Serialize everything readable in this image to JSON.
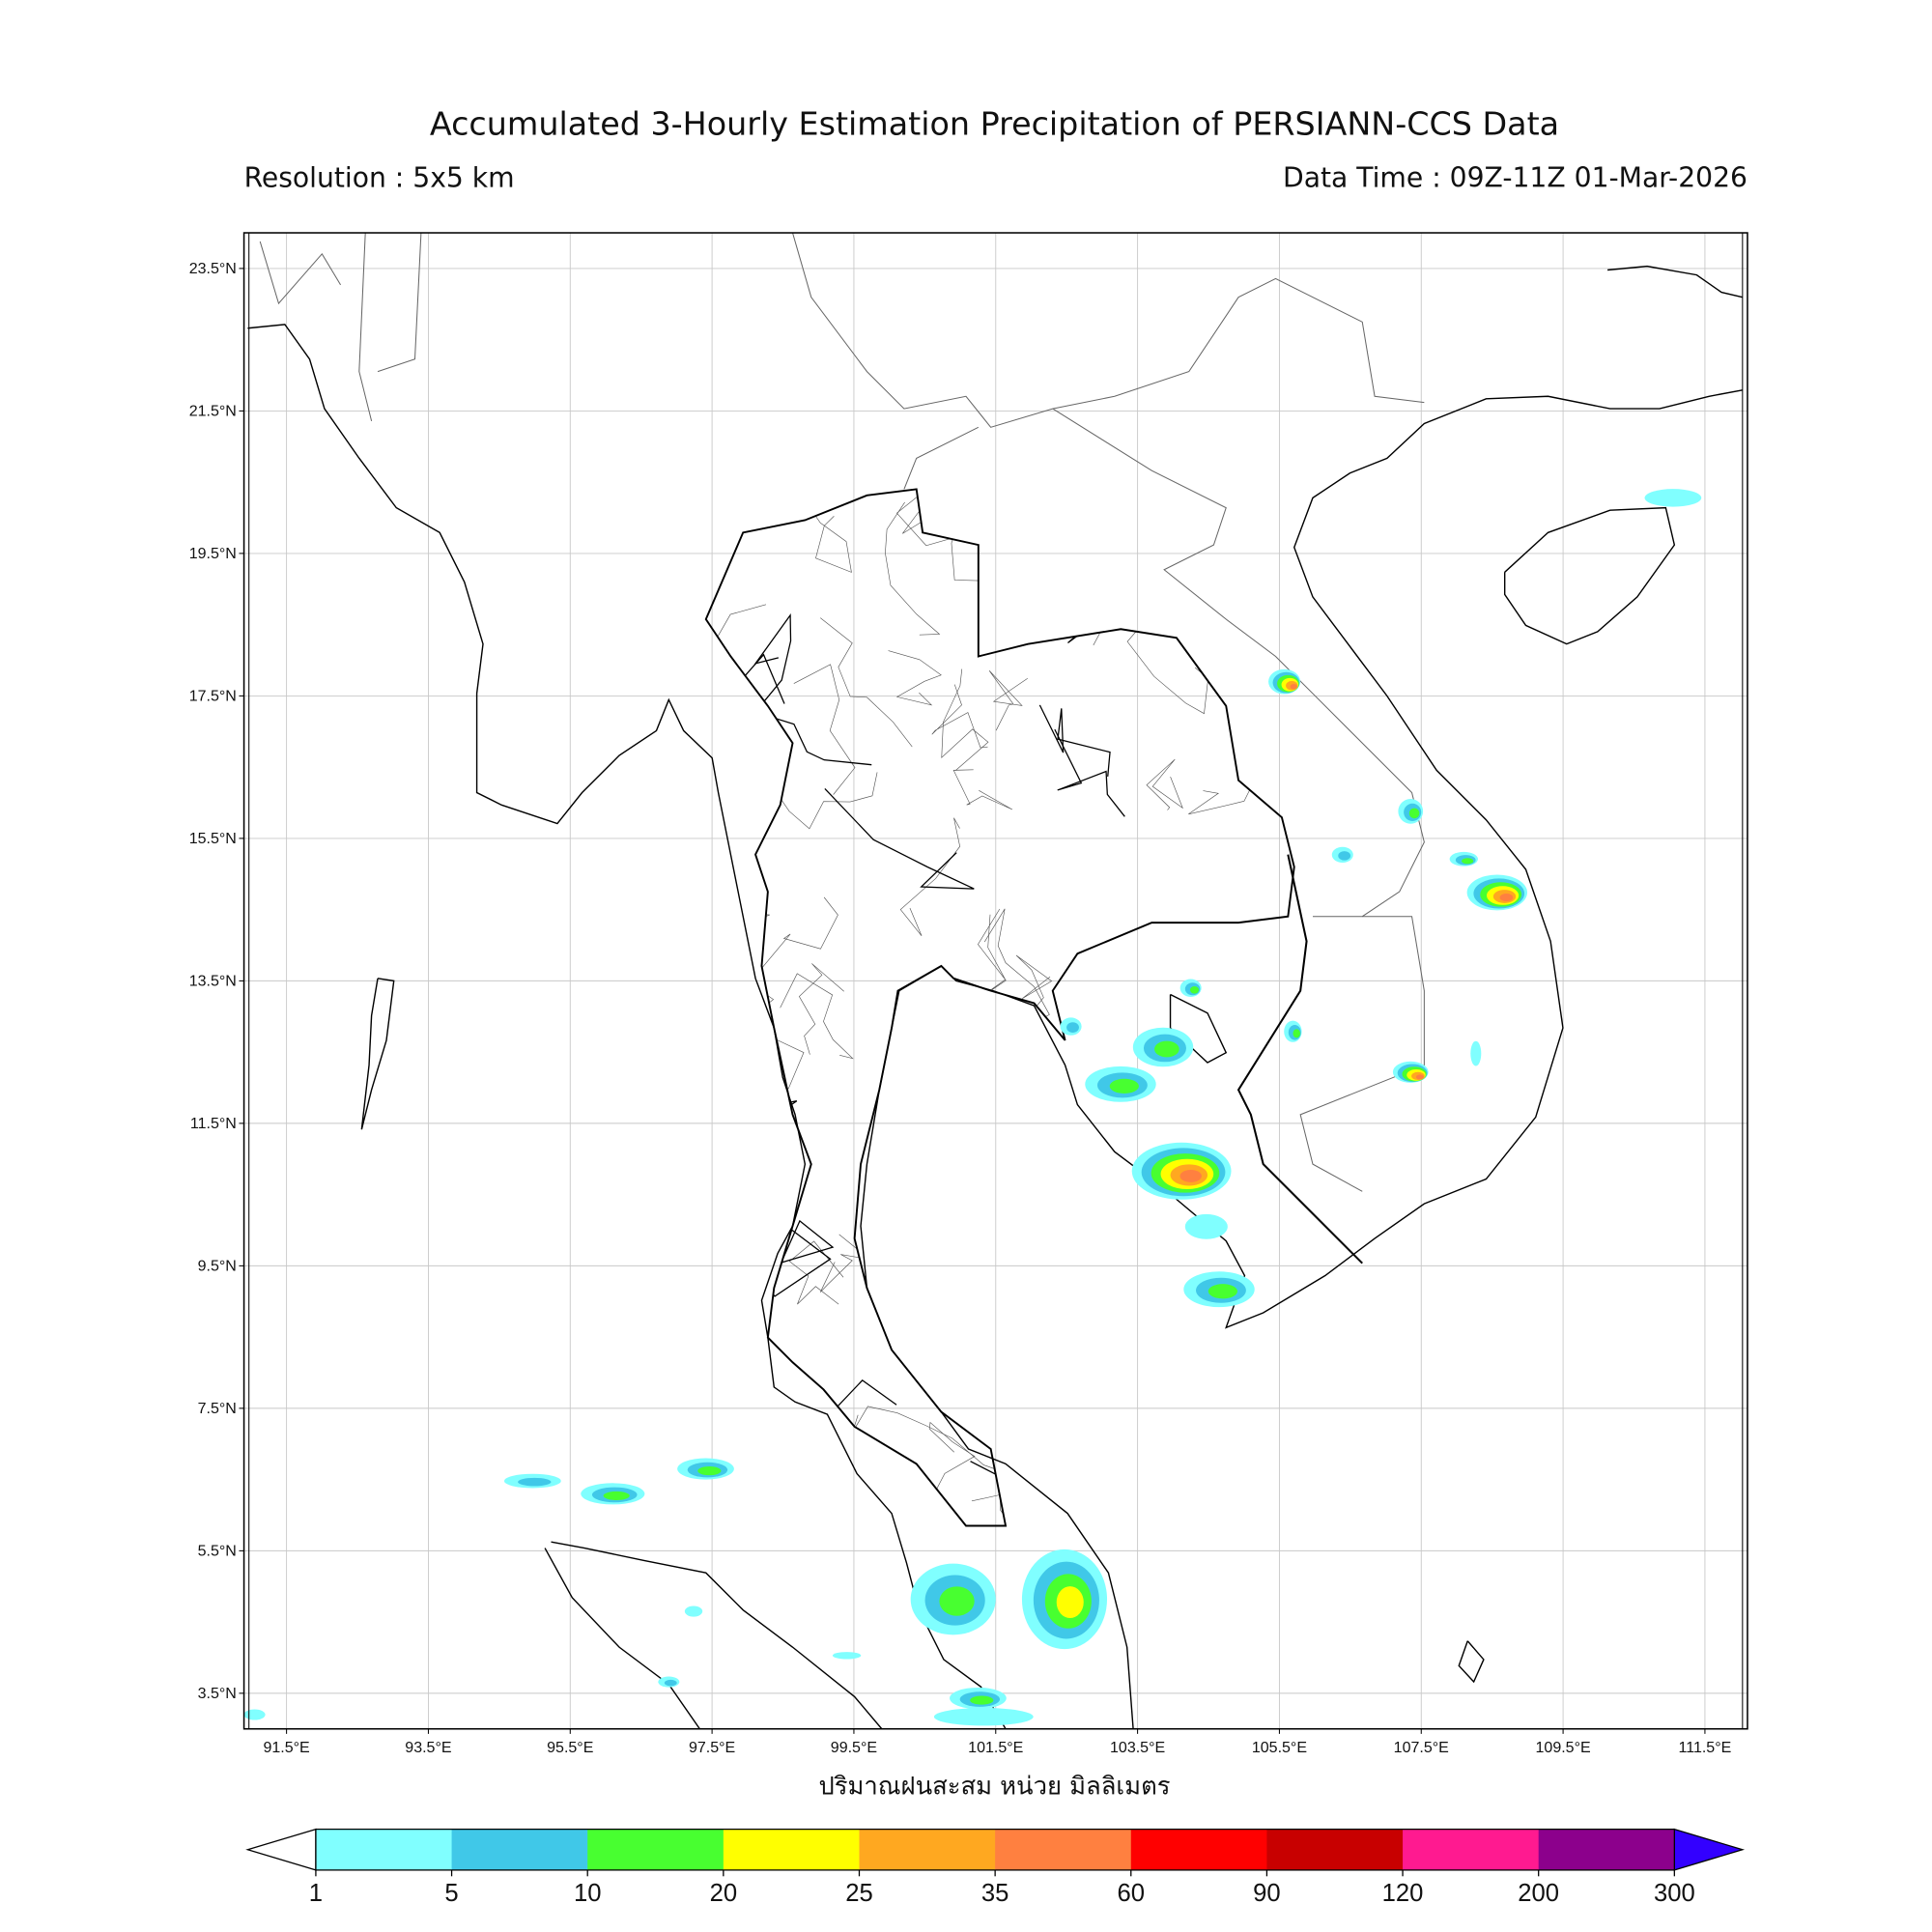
{
  "header": {
    "title": "Accumulated 3-Hourly Estimation Precipitation of PERSIANN-CCS Data",
    "resolution": "Resolution : 5x5 km",
    "data_time": "Data Time : 09Z-11Z 01-Mar-2026"
  },
  "chart_data": {
    "type": "heatmap",
    "projection": "plate carree",
    "grid": true,
    "xlim": [
      90.9,
      112.1
    ],
    "ylim": [
      3.0,
      24.0
    ],
    "x_ticks": [
      "91.5°E",
      "93.5°E",
      "95.5°E",
      "97.5°E",
      "99.5°E",
      "101.5°E",
      "103.5°E",
      "105.5°E",
      "107.5°E",
      "109.5°E",
      "111.5°E"
    ],
    "x_tick_values": [
      91.5,
      93.5,
      95.5,
      97.5,
      99.5,
      101.5,
      103.5,
      105.5,
      107.5,
      109.5,
      111.5
    ],
    "y_ticks": [
      "23.5°N",
      "21.5°N",
      "19.5°N",
      "17.5°N",
      "15.5°N",
      "13.5°N",
      "11.5°N",
      "9.5°N",
      "7.5°N",
      "5.5°N",
      "3.5°N"
    ],
    "y_tick_values": [
      23.5,
      21.5,
      19.5,
      17.5,
      15.5,
      13.5,
      11.5,
      9.5,
      7.5,
      5.5,
      3.5
    ],
    "xlabel": "ปริมาณฝนสะสม หน่วย มิลลิเมตร",
    "colorbar": {
      "labels": [
        "1",
        "5",
        "10",
        "20",
        "25",
        "35",
        "60",
        "90",
        "120",
        "200",
        "300"
      ],
      "colors": [
        "#80ffff",
        "#40c8e8",
        "#48ff30",
        "#ffff00",
        "#ffa820",
        "#ff8040",
        "#ff0000",
        "#c80000",
        "#ff1a90",
        "#8c008c"
      ],
      "under_color": "#ffffff",
      "over_color": "#3300ff",
      "extend": "both",
      "unit": "mm"
    },
    "precip_cells": [
      {
        "lon": 105.57,
        "lat": 17.7,
        "span_lon": 0.45,
        "span_lat": 0.35,
        "max_level": 5
      },
      {
        "lon": 107.35,
        "lat": 15.88,
        "span_lon": 0.35,
        "span_lat": 0.35,
        "max_level": 2
      },
      {
        "lon": 106.39,
        "lat": 15.27,
        "span_lon": 0.3,
        "span_lat": 0.22,
        "max_level": 1
      },
      {
        "lon": 108.1,
        "lat": 15.21,
        "span_lon": 0.4,
        "span_lat": 0.2,
        "max_level": 2
      },
      {
        "lon": 108.57,
        "lat": 14.74,
        "span_lon": 0.85,
        "span_lat": 0.5,
        "max_level": 5
      },
      {
        "lon": 104.25,
        "lat": 13.4,
        "span_lon": 0.3,
        "span_lat": 0.25,
        "max_level": 2
      },
      {
        "lon": 105.69,
        "lat": 12.79,
        "span_lon": 0.25,
        "span_lat": 0.3,
        "max_level": 2
      },
      {
        "lon": 107.35,
        "lat": 12.22,
        "span_lon": 0.5,
        "span_lat": 0.3,
        "max_level": 5
      },
      {
        "lon": 102.56,
        "lat": 12.86,
        "span_lon": 0.3,
        "span_lat": 0.25,
        "max_level": 1
      },
      {
        "lon": 103.86,
        "lat": 12.57,
        "span_lon": 0.85,
        "span_lat": 0.55,
        "max_level": 2
      },
      {
        "lon": 103.26,
        "lat": 12.05,
        "span_lon": 1.0,
        "span_lat": 0.5,
        "max_level": 2
      },
      {
        "lon": 104.12,
        "lat": 10.83,
        "span_lon": 1.4,
        "span_lat": 0.8,
        "max_level": 5
      },
      {
        "lon": 104.47,
        "lat": 10.05,
        "span_lon": 0.6,
        "span_lat": 0.35,
        "max_level": 0
      },
      {
        "lon": 104.65,
        "lat": 9.17,
        "span_lon": 1.0,
        "span_lat": 0.5,
        "max_level": 2
      },
      {
        "lon": 111.05,
        "lat": 20.28,
        "span_lon": 0.8,
        "span_lat": 0.25,
        "max_level": 0
      },
      {
        "lon": 108.27,
        "lat": 12.48,
        "span_lon": 0.15,
        "span_lat": 0.35,
        "max_level": 0
      },
      {
        "lon": 97.41,
        "lat": 6.65,
        "span_lon": 0.8,
        "span_lat": 0.3,
        "max_level": 2
      },
      {
        "lon": 96.1,
        "lat": 6.3,
        "span_lon": 0.9,
        "span_lat": 0.3,
        "max_level": 2
      },
      {
        "lon": 94.97,
        "lat": 6.48,
        "span_lon": 0.8,
        "span_lat": 0.2,
        "max_level": 1
      },
      {
        "lon": 100.9,
        "lat": 4.82,
        "span_lon": 1.2,
        "span_lat": 1.0,
        "max_level": 2
      },
      {
        "lon": 102.47,
        "lat": 4.82,
        "span_lon": 1.2,
        "span_lat": 1.4,
        "max_level": 3
      },
      {
        "lon": 101.25,
        "lat": 3.43,
        "span_lon": 0.8,
        "span_lat": 0.3,
        "max_level": 2
      },
      {
        "lon": 101.33,
        "lat": 3.17,
        "span_lon": 1.4,
        "span_lat": 0.25,
        "max_level": 0
      },
      {
        "lon": 91.05,
        "lat": 3.2,
        "span_lon": 0.3,
        "span_lat": 0.15,
        "max_level": 0
      },
      {
        "lon": 96.89,
        "lat": 3.66,
        "span_lon": 0.3,
        "span_lat": 0.15,
        "max_level": 1
      },
      {
        "lon": 99.4,
        "lat": 4.03,
        "span_lon": 0.4,
        "span_lat": 0.1,
        "max_level": 0
      },
      {
        "lon": 97.24,
        "lat": 4.65,
        "span_lon": 0.25,
        "span_lat": 0.15,
        "max_level": 0
      }
    ]
  }
}
